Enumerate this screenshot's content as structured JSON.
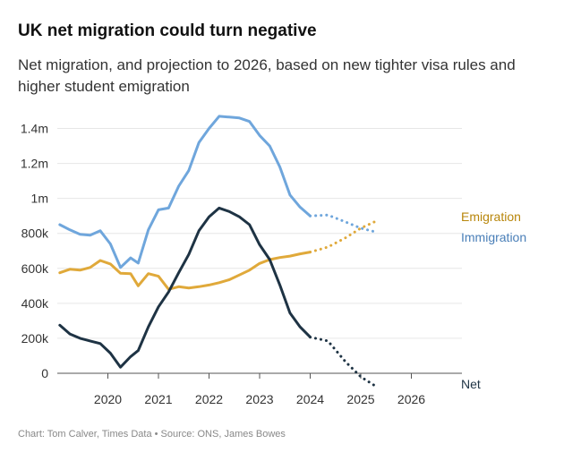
{
  "header": {
    "title": "UK net migration could turn negative",
    "subtitle": "Net migration, and projection to 2026, based on new tighter visa rules and higher student emigration"
  },
  "footer": {
    "credit": "Chart: Tom Calver, Times Data • Source: ONS, James Bowes"
  },
  "chart_data": {
    "type": "line",
    "title": "UK net migration could turn negative",
    "subtitle": "Net migration, and projection to 2026, based on new tighter visa rules and higher student emigration",
    "xlabel": "",
    "ylabel": "",
    "xlim": [
      2019.0,
      2027.0
    ],
    "ylim": [
      0,
      1500000
    ],
    "x_ticks": [
      2020,
      2021,
      2022,
      2023,
      2024,
      2025,
      2026
    ],
    "x_tick_labels": [
      "2020",
      "2021",
      "2022",
      "2023",
      "2024",
      "2025",
      "2026"
    ],
    "y_ticks": [
      0,
      200000,
      400000,
      600000,
      800000,
      1000000,
      1200000,
      1400000
    ],
    "y_tick_labels": [
      "0",
      "200k",
      "400k",
      "600k",
      "800k",
      "1m",
      "1.2m",
      "1.4m"
    ],
    "grid": true,
    "series": [
      {
        "name": "Immigration",
        "label": "Immigration",
        "color": "#6fa6dc",
        "label_color": "#4a7fb8",
        "actual": [
          [
            2019.05,
            850000
          ],
          [
            2019.25,
            820000
          ],
          [
            2019.45,
            795000
          ],
          [
            2019.65,
            790000
          ],
          [
            2019.85,
            815000
          ],
          [
            2020.05,
            740000
          ],
          [
            2020.25,
            605000
          ],
          [
            2020.45,
            660000
          ],
          [
            2020.6,
            630000
          ],
          [
            2020.8,
            820000
          ],
          [
            2021.0,
            935000
          ],
          [
            2021.2,
            945000
          ],
          [
            2021.4,
            1070000
          ],
          [
            2021.6,
            1160000
          ],
          [
            2021.8,
            1320000
          ],
          [
            2022.0,
            1400000
          ],
          [
            2022.2,
            1470000
          ],
          [
            2022.4,
            1465000
          ],
          [
            2022.6,
            1460000
          ],
          [
            2022.8,
            1440000
          ],
          [
            2023.0,
            1360000
          ],
          [
            2023.2,
            1300000
          ],
          [
            2023.4,
            1180000
          ],
          [
            2023.6,
            1020000
          ],
          [
            2023.8,
            950000
          ],
          [
            2024.0,
            900000
          ]
        ],
        "projection": [
          [
            2024.0,
            900000
          ],
          [
            2024.35,
            905000
          ],
          [
            2024.7,
            865000
          ],
          [
            2025.0,
            830000
          ],
          [
            2025.3,
            808000
          ]
        ]
      },
      {
        "name": "Emigration",
        "label": "Emigration",
        "color": "#e0a93a",
        "label_color": "#b8860b",
        "actual": [
          [
            2019.05,
            575000
          ],
          [
            2019.25,
            595000
          ],
          [
            2019.45,
            590000
          ],
          [
            2019.65,
            605000
          ],
          [
            2019.85,
            645000
          ],
          [
            2020.05,
            625000
          ],
          [
            2020.25,
            572000
          ],
          [
            2020.45,
            570000
          ],
          [
            2020.6,
            500000
          ],
          [
            2020.8,
            570000
          ],
          [
            2021.0,
            555000
          ],
          [
            2021.2,
            480000
          ],
          [
            2021.4,
            495000
          ],
          [
            2021.6,
            488000
          ],
          [
            2021.8,
            495000
          ],
          [
            2022.0,
            505000
          ],
          [
            2022.2,
            518000
          ],
          [
            2022.4,
            535000
          ],
          [
            2022.6,
            562000
          ],
          [
            2022.8,
            590000
          ],
          [
            2023.0,
            628000
          ],
          [
            2023.2,
            650000
          ],
          [
            2023.4,
            662000
          ],
          [
            2023.6,
            670000
          ],
          [
            2023.8,
            683000
          ],
          [
            2024.0,
            693000
          ]
        ],
        "projection": [
          [
            2024.0,
            693000
          ],
          [
            2024.35,
            722000
          ],
          [
            2024.7,
            775000
          ],
          [
            2025.0,
            830000
          ],
          [
            2025.3,
            870000
          ]
        ]
      },
      {
        "name": "Net",
        "label": "Net",
        "color": "#1e3344",
        "label_color": "#1e3344",
        "actual": [
          [
            2019.05,
            275000
          ],
          [
            2019.25,
            225000
          ],
          [
            2019.45,
            200000
          ],
          [
            2019.65,
            185000
          ],
          [
            2019.85,
            170000
          ],
          [
            2020.05,
            115000
          ],
          [
            2020.25,
            35000
          ],
          [
            2020.45,
            95000
          ],
          [
            2020.6,
            130000
          ],
          [
            2020.8,
            265000
          ],
          [
            2021.0,
            380000
          ],
          [
            2021.2,
            465000
          ],
          [
            2021.4,
            575000
          ],
          [
            2021.6,
            680000
          ],
          [
            2021.8,
            815000
          ],
          [
            2022.0,
            895000
          ],
          [
            2022.2,
            945000
          ],
          [
            2022.4,
            925000
          ],
          [
            2022.6,
            895000
          ],
          [
            2022.8,
            850000
          ],
          [
            2023.0,
            735000
          ],
          [
            2023.2,
            650000
          ],
          [
            2023.4,
            505000
          ],
          [
            2023.6,
            345000
          ],
          [
            2023.8,
            265000
          ],
          [
            2024.0,
            207000
          ]
        ],
        "projection": [
          [
            2024.0,
            207000
          ],
          [
            2024.35,
            185000
          ],
          [
            2024.7,
            65000
          ],
          [
            2025.0,
            -20000
          ],
          [
            2025.3,
            -75000
          ]
        ]
      }
    ],
    "legend_placement": "right, inline at line ends"
  }
}
